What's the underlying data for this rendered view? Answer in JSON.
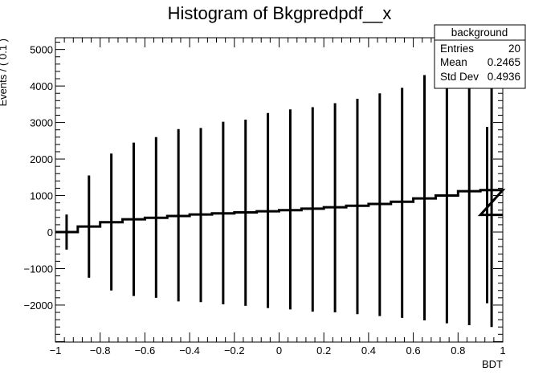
{
  "chart_data": {
    "type": "histogram",
    "title": "Histogram of Bkgpredpdf__x",
    "xlabel": "BDT",
    "ylabel": "Events / ( 0.1 )",
    "xlim": [
      -1,
      1
    ],
    "ylim": [
      -3000,
      5300
    ],
    "x_ticks": [
      "−1",
      "−0.8",
      "−0.6",
      "−0.4",
      "−0.2",
      "0",
      "0.2",
      "0.4",
      "0.6",
      "0.8",
      "1"
    ],
    "y_ticks": [
      "−2000",
      "−1000",
      "0",
      "1000",
      "2000",
      "3000",
      "4000",
      "5000"
    ],
    "bin_edges": [
      -1.0,
      -0.9,
      -0.8,
      -0.7,
      -0.6,
      -0.5,
      -0.4,
      -0.3,
      -0.2,
      -0.1,
      0.0,
      0.1,
      0.2,
      0.3,
      0.4,
      0.5,
      0.6,
      0.7,
      0.8,
      0.9,
      1.0
    ],
    "series": [
      {
        "bins": [
          {
            "x": -0.95,
            "value": 0,
            "err_low": -480,
            "err_high": 480
          },
          {
            "x": -0.85,
            "value": 150,
            "err_low": -1250,
            "err_high": 1550
          },
          {
            "x": -0.75,
            "value": 270,
            "err_low": -1600,
            "err_high": 2150
          },
          {
            "x": -0.65,
            "value": 350,
            "err_low": -1750,
            "err_high": 2450
          },
          {
            "x": -0.55,
            "value": 390,
            "err_low": -1800,
            "err_high": 2600
          },
          {
            "x": -0.45,
            "value": 440,
            "err_low": -1900,
            "err_high": 2820
          },
          {
            "x": -0.35,
            "value": 480,
            "err_low": -1920,
            "err_high": 2850
          },
          {
            "x": -0.25,
            "value": 510,
            "err_low": -1980,
            "err_high": 3020
          },
          {
            "x": -0.15,
            "value": 540,
            "err_low": -2020,
            "err_high": 3080
          },
          {
            "x": -0.05,
            "value": 570,
            "err_low": -2080,
            "err_high": 3260
          },
          {
            "x": 0.05,
            "value": 600,
            "err_low": -2120,
            "err_high": 3360
          },
          {
            "x": 0.15,
            "value": 640,
            "err_low": -2180,
            "err_high": 3420
          },
          {
            "x": 0.25,
            "value": 680,
            "err_low": -2200,
            "err_high": 3530
          },
          {
            "x": 0.35,
            "value": 720,
            "err_low": -2250,
            "err_high": 3650
          },
          {
            "x": 0.45,
            "value": 770,
            "err_low": -2300,
            "err_high": 3800
          },
          {
            "x": 0.55,
            "value": 830,
            "err_low": -2350,
            "err_high": 3950
          },
          {
            "x": 0.65,
            "value": 920,
            "err_low": -2420,
            "err_high": 4300
          },
          {
            "x": 0.75,
            "value": 1000,
            "err_low": -2500,
            "err_high": 4520
          },
          {
            "x": 0.85,
            "value": 1120,
            "err_low": -2550,
            "err_high": 4620
          },
          {
            "x": 0.95,
            "value": 1150,
            "err_low": -2600,
            "err_high": 4680
          }
        ],
        "tail_value": 470,
        "tail_err_low": -1950,
        "tail_err_high": 2880
      }
    ],
    "stats_box": {
      "title": "background",
      "rows": [
        {
          "label": "Entries",
          "value": "20"
        },
        {
          "label": "Mean",
          "value": "0.2465"
        },
        {
          "label": "Std Dev",
          "value": "0.4936"
        }
      ]
    }
  }
}
